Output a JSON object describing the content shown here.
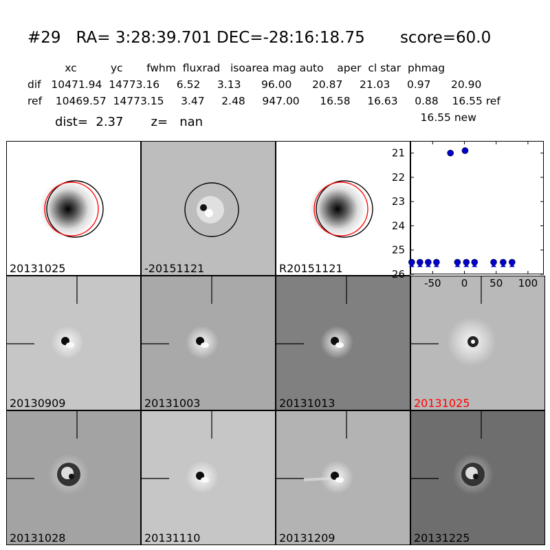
{
  "header": {
    "title": "#29   RA= 3:28:39.701 DEC=-28:16:18.75       score=60.0",
    "row_labels": "           xc          yc       fwhm  fluxrad   isoarea mag auto    aper  cl star  phmag",
    "row_dif": "dif   10471.94  14773.16     6.52     3.13      96.00      20.87     21.03     0.97      20.90",
    "row_ref": "ref    10469.57  14773.15     3.47     2.48     947.00      16.58     16.63     0.88    16.55 ref",
    "row_new": "                                                                                                                    16.55 new",
    "dist_line": "dist=  2.37       z=   nan"
  },
  "stamps": [
    {
      "label": "20131025",
      "kind": "ref",
      "label_color": "#000000"
    },
    {
      "label": "-20151121",
      "kind": "diff",
      "label_color": "#000000"
    },
    {
      "label": "R20151121",
      "kind": "ref2",
      "label_color": "#000000"
    },
    {
      "label": "20130909",
      "kind": "dipole",
      "label_color": "#000000"
    },
    {
      "label": "20131003",
      "kind": "dipole-dark",
      "label_color": "#000000"
    },
    {
      "label": "20131013",
      "kind": "dipole-darkbg",
      "label_color": "#000000"
    },
    {
      "label": "20131025",
      "kind": "halo",
      "label_color": "#ff0000"
    },
    {
      "label": "20131028",
      "kind": "ring",
      "label_color": "#000000"
    },
    {
      "label": "20131110",
      "kind": "dipole",
      "label_color": "#000000"
    },
    {
      "label": "20131209",
      "kind": "streak",
      "label_color": "#000000"
    },
    {
      "label": "20131225",
      "kind": "ring-dark",
      "label_color": "#000000"
    }
  ],
  "chart_data": {
    "type": "scatter",
    "title": "",
    "xlabel": "",
    "ylabel": "",
    "xlim": [
      -85,
      125
    ],
    "ylim": [
      26,
      20.5
    ],
    "y_inverted": true,
    "x_ticks": [
      "-50",
      "0",
      "50",
      "100"
    ],
    "x_tick_values": [
      -50,
      0,
      50,
      100
    ],
    "y_ticks": [
      "21",
      "22",
      "23",
      "24",
      "25",
      "26"
    ],
    "y_tick_values": [
      21,
      22,
      23,
      24,
      25,
      26
    ],
    "marker_color": "#0000cc",
    "series": [
      {
        "detections": [
          {
            "x": -22,
            "y": 21.0
          },
          {
            "x": 1,
            "y": 20.9
          }
        ],
        "upper_limits": [
          {
            "x": -83,
            "y": 25.5
          },
          {
            "x": -70,
            "y": 25.5
          },
          {
            "x": -57,
            "y": 25.5
          },
          {
            "x": -44,
            "y": 25.5
          },
          {
            "x": -11,
            "y": 25.5
          },
          {
            "x": 3,
            "y": 25.5
          },
          {
            "x": 16,
            "y": 25.5
          },
          {
            "x": 46,
            "y": 25.5
          },
          {
            "x": 61,
            "y": 25.5
          },
          {
            "x": 75,
            "y": 25.5
          }
        ]
      }
    ]
  }
}
